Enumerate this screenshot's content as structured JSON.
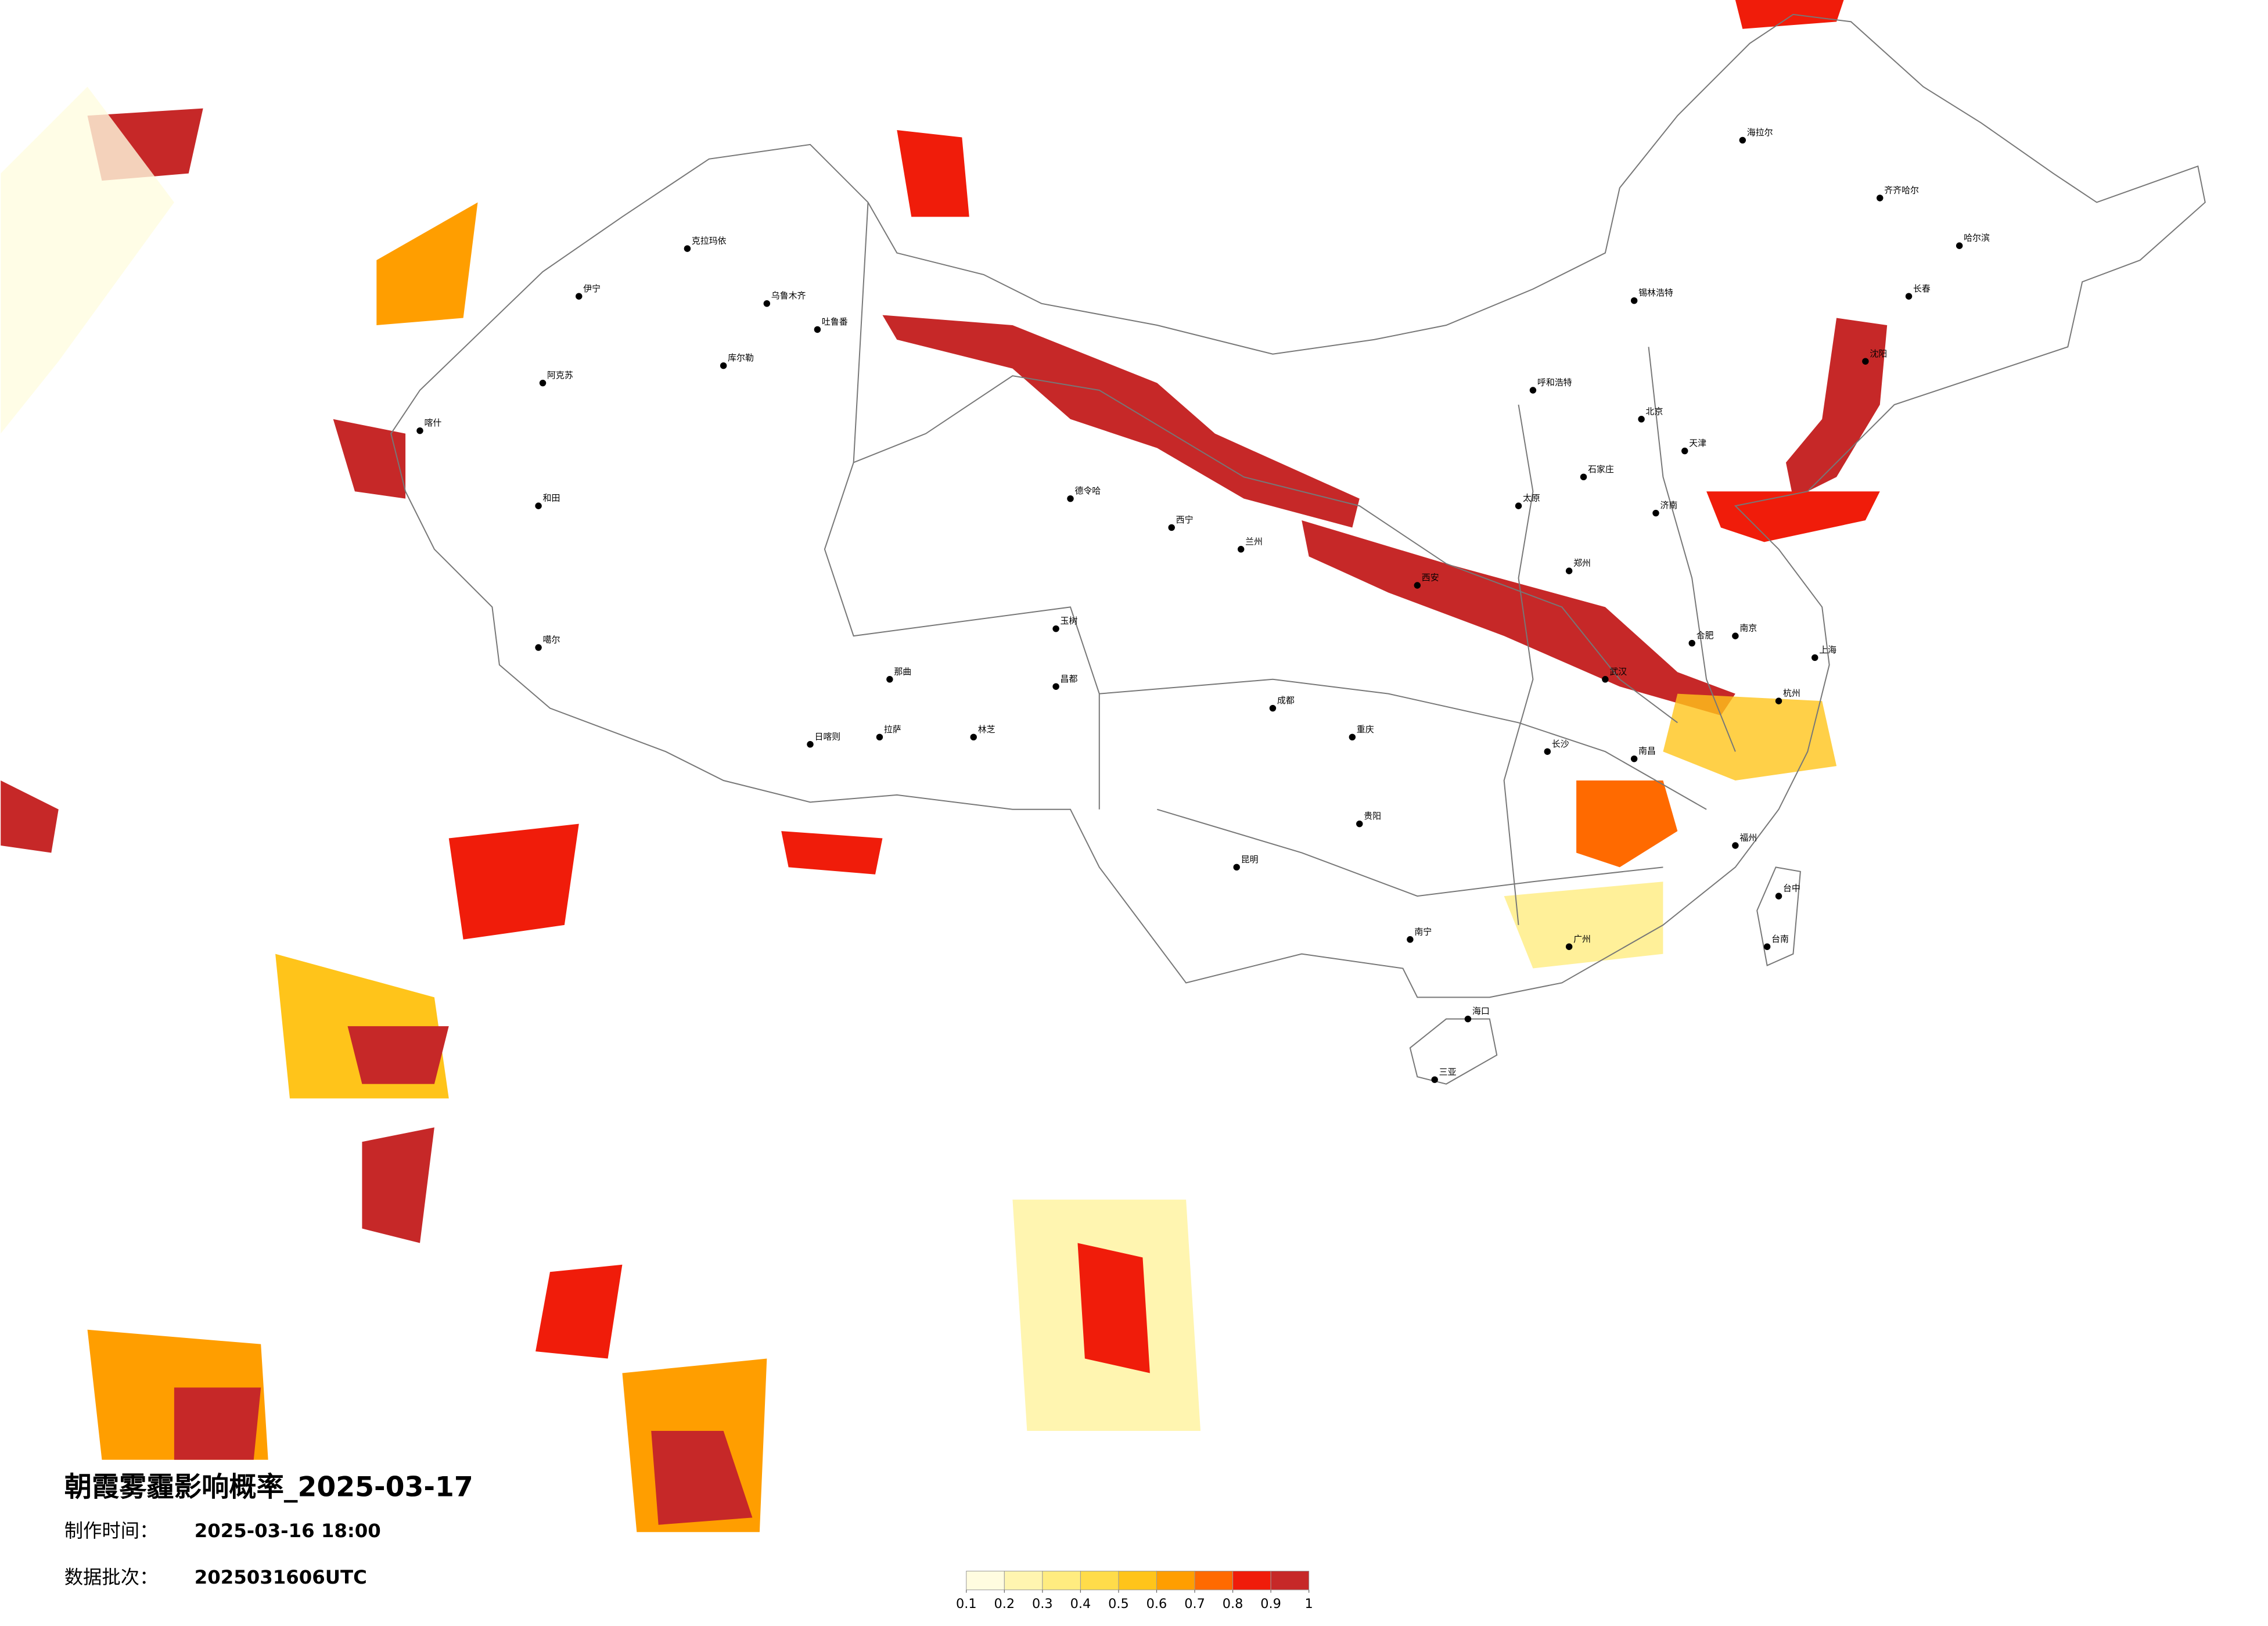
{
  "header": {
    "title": "朝霞雾霾影响概率_2025-03-17",
    "made_label": "制作时间：",
    "made_time": "2025-03-16 18:00",
    "batch_label": "数据批次：",
    "batch": "2025031606UTC"
  },
  "colorbar": {
    "colors": [
      "#fffce0",
      "#fff5b0",
      "#ffec80",
      "#ffdc4a",
      "#ffc41a",
      "#ff9e00",
      "#ff6a00",
      "#f01c0a",
      "#c62828"
    ],
    "ticks": [
      0.1,
      0.2,
      0.3,
      0.4,
      0.5,
      0.6,
      0.7,
      0.8,
      0.9,
      1
    ]
  },
  "cities": [
    "海拉尔",
    "齐齐哈尔",
    "哈尔滨",
    "长春",
    "沈阳",
    "锡林浩特",
    "呼和浩特",
    "北京",
    "天津",
    "石家庄",
    "太原",
    "济南",
    "郑州",
    "西安",
    "武汉",
    "合肥",
    "南京",
    "上海",
    "杭州",
    "长沙",
    "南昌",
    "福州",
    "广州",
    "南宁",
    "海口",
    "三亚",
    "贵阳",
    "昆明",
    "成都",
    "重庆",
    "台中",
    "台南",
    "兰州",
    "西宁",
    "德令哈",
    "克拉玛依",
    "乌鲁木齐",
    "吐鲁番",
    "伊宁",
    "阿克苏",
    "库尔勒",
    "和田",
    "喀什",
    "噶尔",
    "那曲",
    "拉萨",
    "日喀则",
    "林芝",
    "昌都",
    "玉树"
  ]
}
